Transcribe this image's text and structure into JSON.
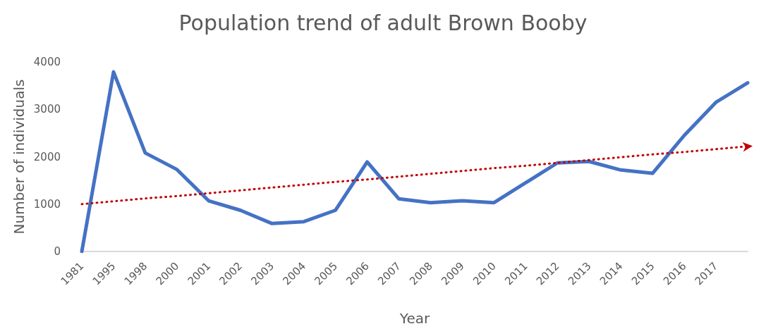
{
  "chart_data": {
    "type": "line",
    "title": "Population trend of adult Brown Booby",
    "xlabel": "Year",
    "ylabel": "Number of individuals",
    "categories": [
      "1981",
      "1995",
      "1998",
      "2000",
      "2001",
      "2002",
      "2003",
      "2004",
      "2005",
      "2006",
      "2007",
      "2008",
      "2009",
      "2010",
      "2011",
      "2012",
      "2013",
      "2014",
      "2015",
      "2016",
      "2017",
      null
    ],
    "series": [
      {
        "color": "#4472c4",
        "values": [
          0,
          3790,
          2080,
          1730,
          1070,
          870,
          590,
          630,
          870,
          1890,
          1110,
          1030,
          1070,
          1030,
          1450,
          1870,
          1900,
          1720,
          1650,
          2450,
          3150,
          3560
        ]
      },
      {
        "color": "#c00000",
        "line_style": "dotted",
        "values": [
          1000,
          1060,
          1120,
          1170,
          1230,
          1290,
          1350,
          1410,
          1470,
          1520,
          1580,
          1640,
          1700,
          1760,
          1810,
          1870,
          1930,
          1990,
          2050,
          2100,
          2160,
          2220
        ]
      }
    ],
    "ylim": [
      0,
      4000
    ],
    "yticks": [
      0,
      1000,
      2000,
      3000,
      4000
    ],
    "grid": false,
    "marker": "none"
  }
}
